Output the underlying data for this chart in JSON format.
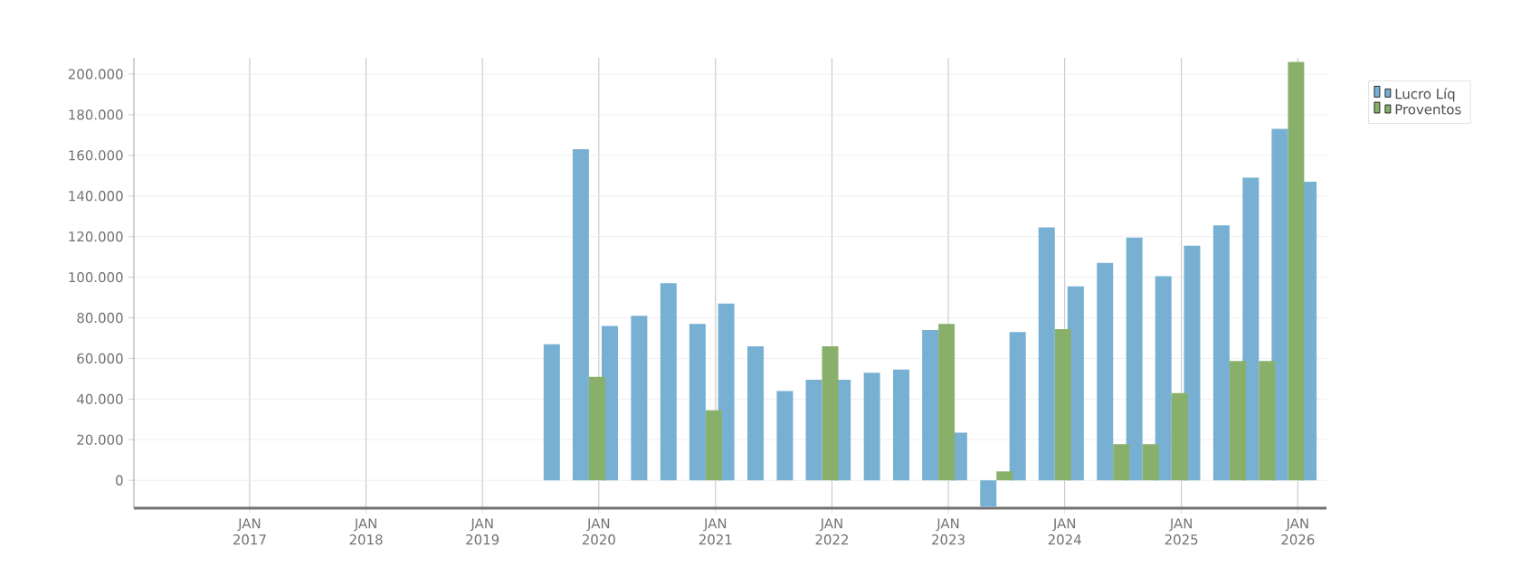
{
  "chart_data": {
    "type": "bar",
    "x": [
      "2019-09",
      "2019-12",
      "2020-03",
      "2020-06",
      "2020-09",
      "2020-12",
      "2021-03",
      "2021-06",
      "2021-09",
      "2021-12",
      "2022-03",
      "2022-06",
      "2022-09",
      "2022-12",
      "2023-03",
      "2023-06",
      "2023-09",
      "2023-12",
      "2024-03",
      "2024-06",
      "2024-09",
      "2024-12",
      "2025-03",
      "2025-06",
      "2025-09",
      "2025-12",
      "2026-03"
    ],
    "series": [
      {
        "name": "Lucro Líq",
        "color": "#77b0d2",
        "values": [
          67000,
          163000,
          76000,
          81000,
          97000,
          77000,
          87000,
          66000,
          44000,
          49500,
          49500,
          53000,
          54500,
          74000,
          23500,
          -13000,
          73000,
          124500,
          95500,
          107000,
          119500,
          100500,
          115500,
          125500,
          149000,
          173000,
          147000
        ]
      },
      {
        "name": "Proventos",
        "color": "#88b06a",
        "values": [
          0,
          51000,
          0,
          0,
          0,
          34500,
          0,
          0,
          0,
          66000,
          0,
          0,
          0,
          77000,
          0,
          4400,
          0,
          74500,
          0,
          17800,
          17800,
          43000,
          0,
          58700,
          58700,
          206000,
          0
        ]
      }
    ],
    "xlim": [
      "2016-01-04",
      "2026-04-01"
    ],
    "xticks": [
      {
        "value": "2017-01",
        "label": "JAN 2017"
      },
      {
        "value": "2018-01",
        "label": "JAN 2018"
      },
      {
        "value": "2019-01",
        "label": "JAN 2019"
      },
      {
        "value": "2020-01",
        "label": "JAN 2020"
      },
      {
        "value": "2021-01",
        "label": "JAN 2021"
      },
      {
        "value": "2022-01",
        "label": "JAN 2022"
      },
      {
        "value": "2023-01",
        "label": "JAN 2023"
      },
      {
        "value": "2024-01",
        "label": "JAN 2024"
      },
      {
        "value": "2025-01",
        "label": "JAN 2025"
      },
      {
        "value": "2026-01",
        "label": "JAN 2026"
      }
    ],
    "ylim": [
      -13700,
      208000
    ],
    "yticks": [
      0,
      {
        "value": 20000,
        "label": "20.000"
      },
      {
        "value": 40000,
        "label": "40.000"
      },
      {
        "value": 60000,
        "label": "60.000"
      },
      {
        "value": 80000,
        "label": "80.000"
      },
      {
        "value": 100000,
        "label": "100.000"
      },
      {
        "value": 120000,
        "label": "120.000"
      },
      {
        "value": 140000,
        "label": "140.000"
      },
      {
        "value": 160000,
        "label": "160.000"
      },
      {
        "value": 180000,
        "label": "180.000"
      },
      {
        "value": 200000,
        "label": "200.000"
      }
    ],
    "grid": true,
    "legend": "top right"
  }
}
